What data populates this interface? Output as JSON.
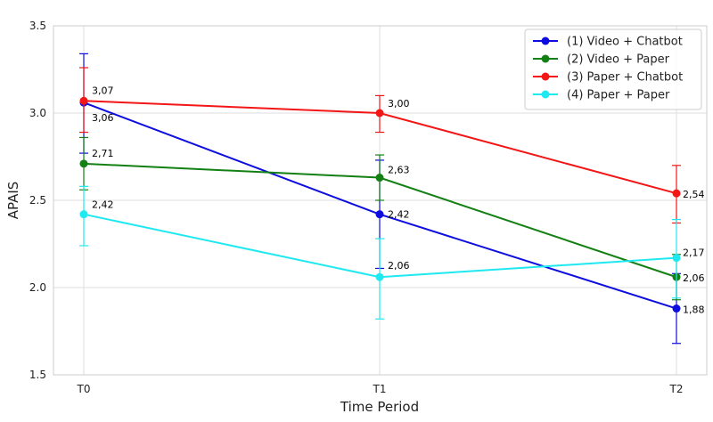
{
  "chart_data": {
    "type": "line",
    "xlabel": "Time Period",
    "ylabel": "APAIS",
    "categories": [
      "T0",
      "T1",
      "T2"
    ],
    "ylim": [
      1.5,
      3.5
    ],
    "yticks": [
      "1.5",
      "2.0",
      "2.5",
      "3.0",
      "3.5"
    ],
    "grid": true,
    "legend_position": "top-right",
    "error_bars": true,
    "series": [
      {
        "name": "(1) Video + Chatbot",
        "color": "#0d0ddf",
        "values": [
          3.06,
          2.42,
          1.88
        ],
        "labels": [
          "3,06",
          "2,42",
          "1,88"
        ],
        "err_low": [
          2.77,
          2.11,
          1.68
        ],
        "err_high": [
          3.34,
          2.73,
          2.08
        ]
      },
      {
        "name": "(2) Video + Paper",
        "color": "#138013",
        "values": [
          2.71,
          2.63,
          2.06
        ],
        "labels": [
          "2,71",
          "2,63",
          "2,06"
        ],
        "err_low": [
          2.56,
          2.5,
          1.93
        ],
        "err_high": [
          2.86,
          2.76,
          2.19
        ]
      },
      {
        "name": "(3) Paper + Chatbot",
        "color": "#f21616",
        "values": [
          3.07,
          3.0,
          2.54
        ],
        "labels": [
          "3,07",
          "3,00",
          "2,54"
        ],
        "err_low": [
          2.89,
          2.89,
          2.37
        ],
        "err_high": [
          3.26,
          3.1,
          2.7
        ]
      },
      {
        "name": "(4) Paper + Paper",
        "color": "#1fe9f0",
        "values": [
          2.42,
          2.06,
          2.17
        ],
        "labels": [
          "2,42",
          "2,06",
          "2,17"
        ],
        "err_low": [
          2.24,
          1.82,
          1.94
        ],
        "err_high": [
          2.58,
          2.28,
          2.39
        ]
      }
    ]
  }
}
